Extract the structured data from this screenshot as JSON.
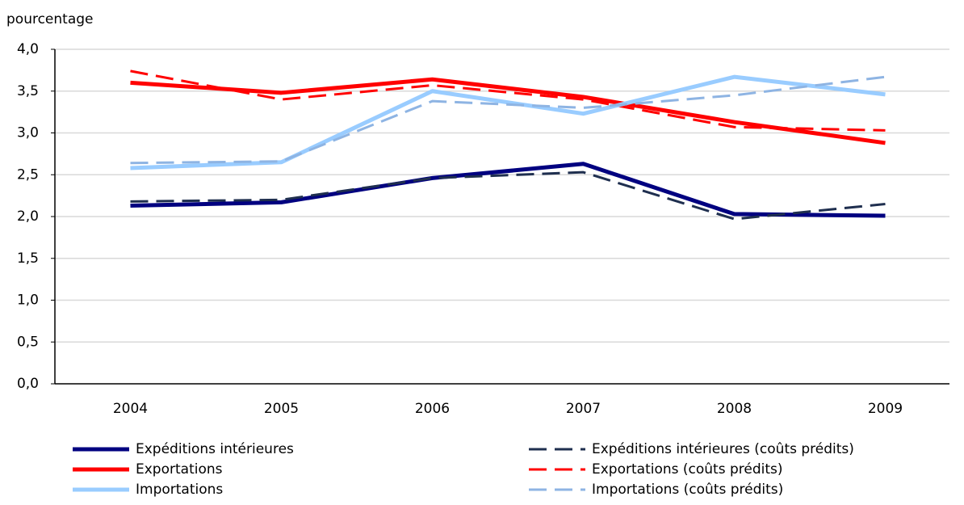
{
  "chart_data": {
    "type": "line",
    "y_label": "pourcentage",
    "categories": [
      "2004",
      "2005",
      "2006",
      "2007",
      "2008",
      "2009"
    ],
    "ylim": [
      0,
      4
    ],
    "yticks": [
      {
        "value": 0,
        "label": "0,0"
      },
      {
        "value": 0.5,
        "label": "0,5"
      },
      {
        "value": 1,
        "label": "1,0"
      },
      {
        "value": 1.5,
        "label": "1,5"
      },
      {
        "value": 2,
        "label": "2,0"
      },
      {
        "value": 2.5,
        "label": "2,5"
      },
      {
        "value": 3,
        "label": "3,0"
      },
      {
        "value": 3.5,
        "label": "3,5"
      },
      {
        "value": 4,
        "label": "4,0"
      }
    ],
    "grid": true,
    "series": [
      {
        "name": "Expéditions intérieures",
        "color": "#000080",
        "dashed": false,
        "values": [
          2.13,
          2.17,
          2.46,
          2.63,
          2.03,
          2.01
        ]
      },
      {
        "name": "Expéditions intérieures (coûts prédits)",
        "color": "#1f2f4f",
        "dashed": true,
        "values": [
          2.18,
          2.2,
          2.46,
          2.53,
          1.97,
          2.15
        ]
      },
      {
        "name": "Exportations",
        "color": "#ff0000",
        "dashed": false,
        "values": [
          3.6,
          3.48,
          3.64,
          3.43,
          3.13,
          2.88
        ]
      },
      {
        "name": "Exportations (coûts prédits)",
        "color": "#ff0000",
        "dashed": true,
        "values": [
          3.74,
          3.4,
          3.57,
          3.4,
          3.07,
          3.03
        ]
      },
      {
        "name": "Importations",
        "color": "#99ccff",
        "dashed": false,
        "values": [
          2.58,
          2.65,
          3.5,
          3.23,
          3.67,
          3.46
        ]
      },
      {
        "name": "Importations (coûts prédits)",
        "color": "#8eb4e3",
        "dashed": true,
        "values": [
          2.64,
          2.66,
          3.38,
          3.3,
          3.45,
          3.67
        ]
      }
    ]
  }
}
